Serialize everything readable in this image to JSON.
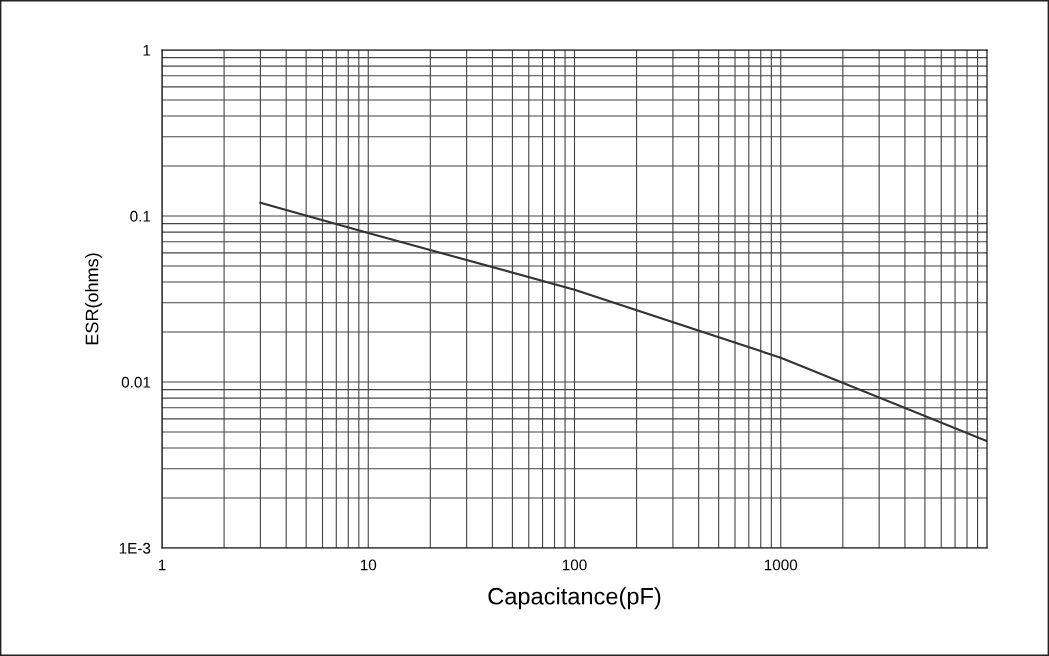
{
  "chart_data": {
    "type": "line",
    "xlabel": "Capacitance(pF)",
    "ylabel": "ESR(ohms)",
    "log": "xy",
    "grid": true,
    "legend": false,
    "marker": "none",
    "line_style": "solid",
    "x": [
      3,
      10,
      100,
      1000,
      10000
    ],
    "series": [
      {
        "color": "#333333",
        "values": [
          0.12,
          0.079,
          0.036,
          0.014,
          0.0044
        ]
      }
    ],
    "xlim": [
      1,
      10000
    ],
    "xticks": [
      1,
      10,
      100,
      1000
    ],
    "ylim": [
      0.001,
      1
    ],
    "yticks": [
      {
        "value": 0.001,
        "label": "1E-3"
      },
      {
        "value": 0.01,
        "label": "0.01"
      },
      {
        "value": 0.1,
        "label": "0.1"
      },
      1
    ]
  }
}
